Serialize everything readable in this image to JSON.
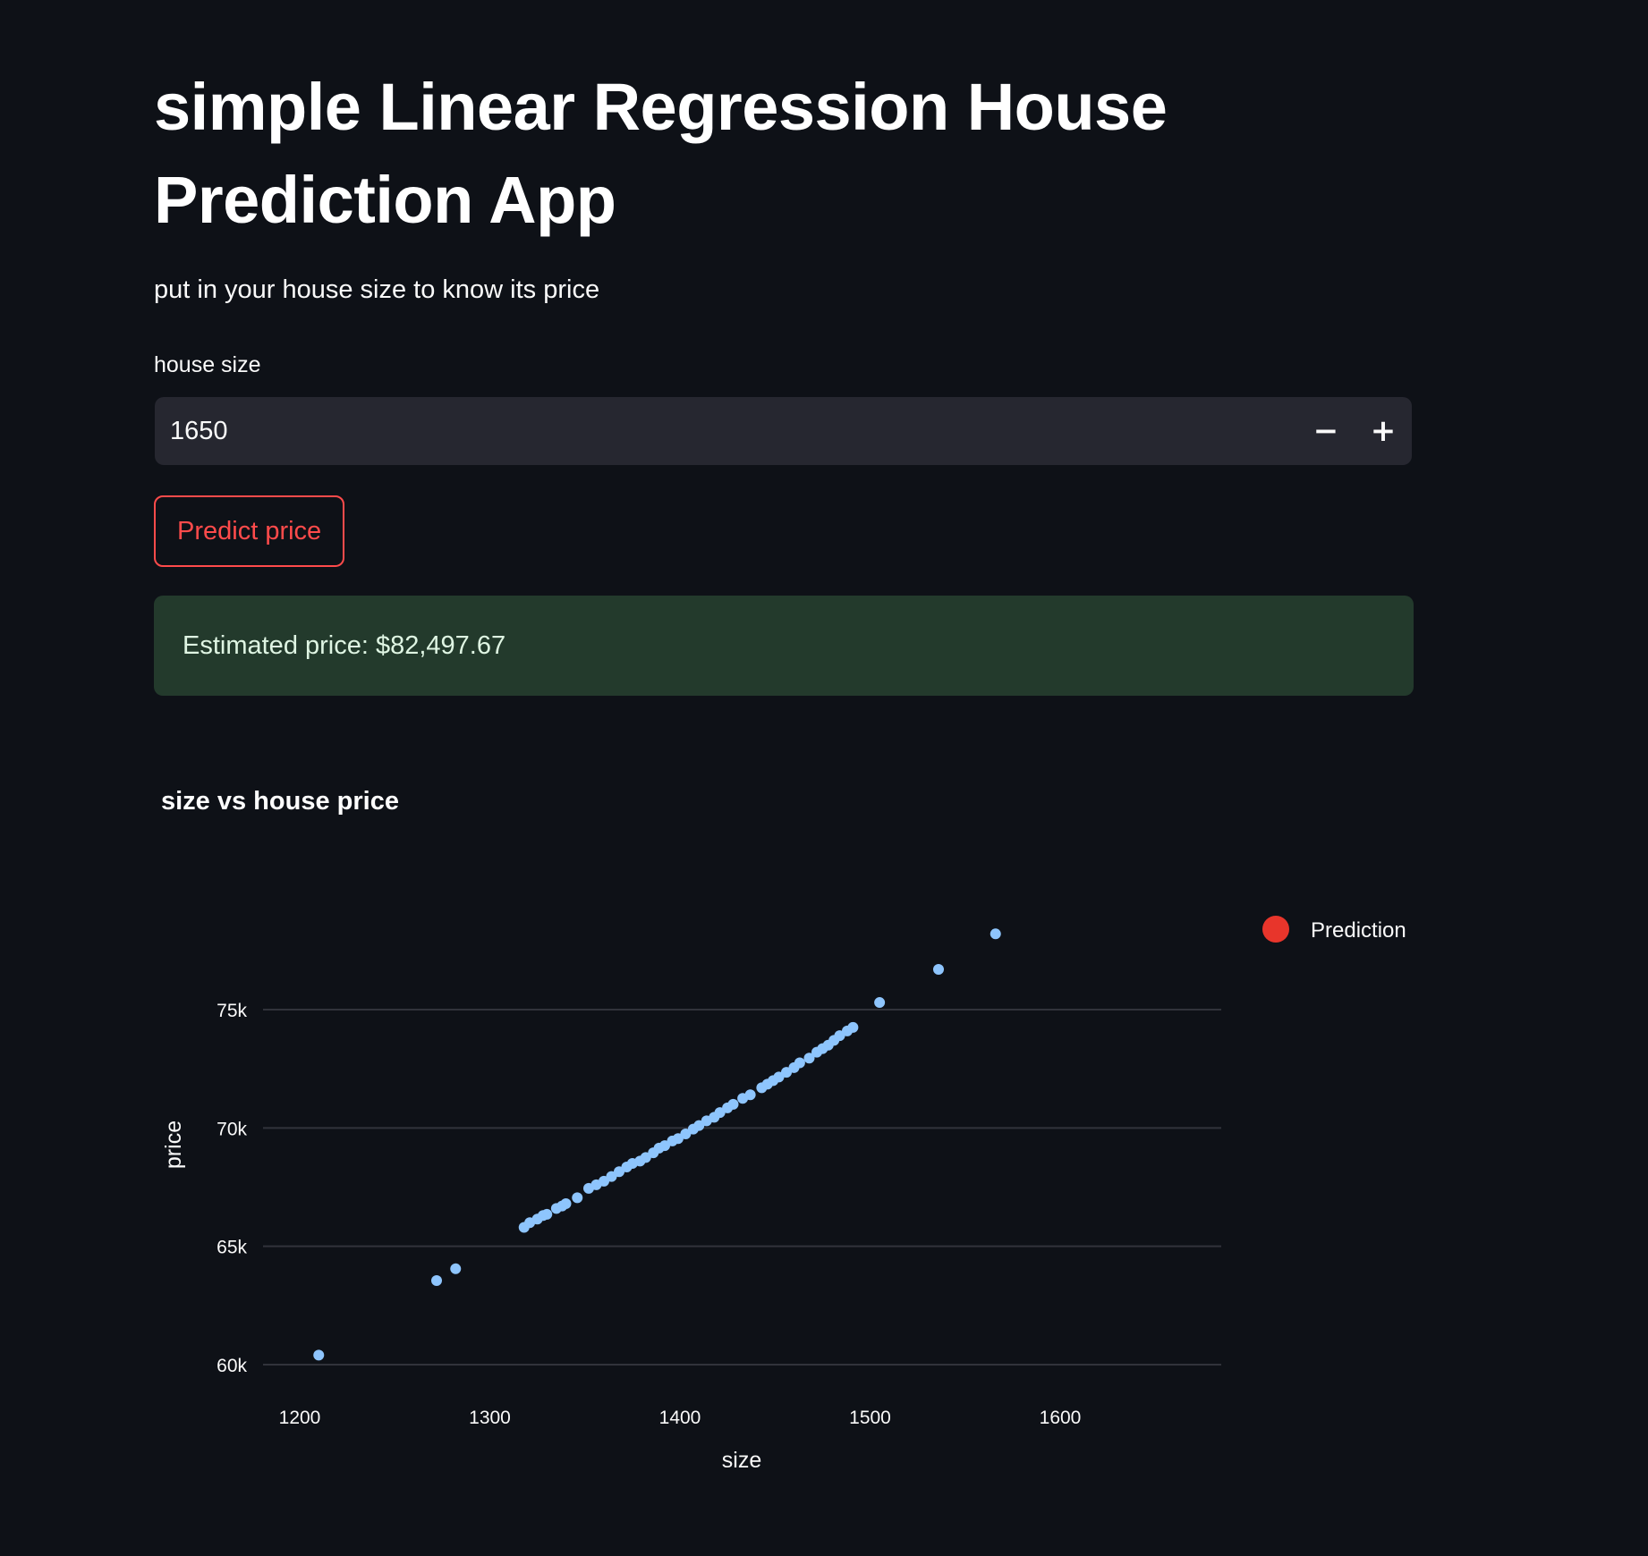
{
  "header": {
    "title": "simple Linear Regression House Prediction App",
    "subtitle": "put in your house size to know its price"
  },
  "input": {
    "label": "house size",
    "value": "1650",
    "decrement_label": "−",
    "increment_label": "+"
  },
  "button": {
    "predict_label": "Predict price"
  },
  "result": {
    "text": "Estimated price: $82,497.67"
  },
  "chart_data": {
    "type": "scatter",
    "title": "size vs house price",
    "xlabel": "size",
    "ylabel": "price",
    "xlim": [
      1190,
      1690
    ],
    "ylim": [
      59500,
      79500
    ],
    "x_ticks": [
      1200,
      1300,
      1400,
      1500,
      1600
    ],
    "x_tick_labels": [
      "1200",
      "1300",
      "1400",
      "1500",
      "1600"
    ],
    "y_ticks": [
      60000,
      65000,
      70000,
      75000
    ],
    "y_tick_labels": [
      "60k",
      "65k",
      "70k",
      "75k"
    ],
    "grid": "horizontal",
    "legend_position": "top-right",
    "legend": [
      {
        "name": "Prediction",
        "color": "#e8352b"
      }
    ],
    "point_color": "#8ec5fd",
    "points": [
      [
        1210,
        60400
      ],
      [
        1272,
        63550
      ],
      [
        1282,
        64050
      ],
      [
        1318,
        65800
      ],
      [
        1321,
        66000
      ],
      [
        1325,
        66150
      ],
      [
        1328,
        66300
      ],
      [
        1330,
        66350
      ],
      [
        1335,
        66600
      ],
      [
        1338,
        66700
      ],
      [
        1340,
        66800
      ],
      [
        1346,
        67050
      ],
      [
        1352,
        67450
      ],
      [
        1356,
        67600
      ],
      [
        1360,
        67750
      ],
      [
        1364,
        67950
      ],
      [
        1368,
        68150
      ],
      [
        1372,
        68350
      ],
      [
        1375,
        68500
      ],
      [
        1379,
        68600
      ],
      [
        1382,
        68750
      ],
      [
        1386,
        68950
      ],
      [
        1389,
        69150
      ],
      [
        1392,
        69250
      ],
      [
        1396,
        69450
      ],
      [
        1399,
        69550
      ],
      [
        1403,
        69750
      ],
      [
        1407,
        69950
      ],
      [
        1410,
        70100
      ],
      [
        1414,
        70300
      ],
      [
        1418,
        70450
      ],
      [
        1421,
        70650
      ],
      [
        1425,
        70850
      ],
      [
        1428,
        71000
      ],
      [
        1433,
        71250
      ],
      [
        1437,
        71400
      ],
      [
        1443,
        71700
      ],
      [
        1446,
        71850
      ],
      [
        1449,
        72000
      ],
      [
        1452,
        72150
      ],
      [
        1456,
        72350
      ],
      [
        1460,
        72550
      ],
      [
        1463,
        72750
      ],
      [
        1468,
        72950
      ],
      [
        1472,
        73200
      ],
      [
        1475,
        73350
      ],
      [
        1478,
        73500
      ],
      [
        1481,
        73700
      ],
      [
        1484,
        73900
      ],
      [
        1488,
        74100
      ],
      [
        1491,
        74250
      ],
      [
        1505,
        75300
      ],
      [
        1536,
        76700
      ],
      [
        1566,
        78200
      ]
    ]
  }
}
